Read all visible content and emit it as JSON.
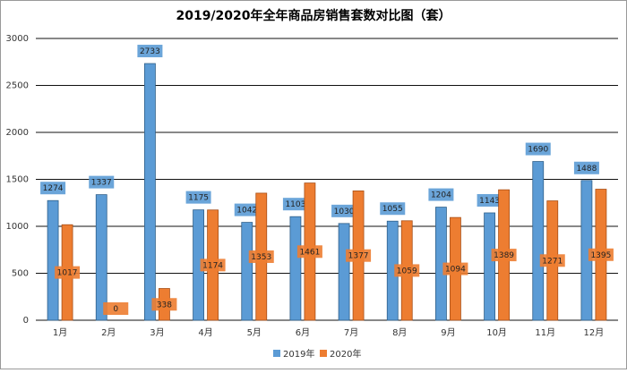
{
  "chart_data": {
    "type": "bar",
    "title": "2019/2020年全年商品房销售套数对比图（套）",
    "categories": [
      "1月",
      "2月",
      "3月",
      "4月",
      "5月",
      "6月",
      "7月",
      "8月",
      "9月",
      "10月",
      "11月",
      "12月"
    ],
    "series": [
      {
        "name": "2019年",
        "color": "#5b9bd5",
        "values": [
          1274,
          1337,
          2733,
          1175,
          1042,
          1103,
          1030,
          1055,
          1204,
          1143,
          1690,
          1488
        ]
      },
      {
        "name": "2020年",
        "color": "#ed7d31",
        "values": [
          1017,
          0,
          338,
          1174,
          1353,
          1461,
          1377,
          1059,
          1094,
          1389,
          1271,
          1395
        ]
      }
    ],
    "ylim": [
      0,
      3000
    ],
    "yticks": [
      0,
      500,
      1000,
      1500,
      2000,
      2500,
      3000
    ],
    "grid": true,
    "legend": "bottom"
  }
}
